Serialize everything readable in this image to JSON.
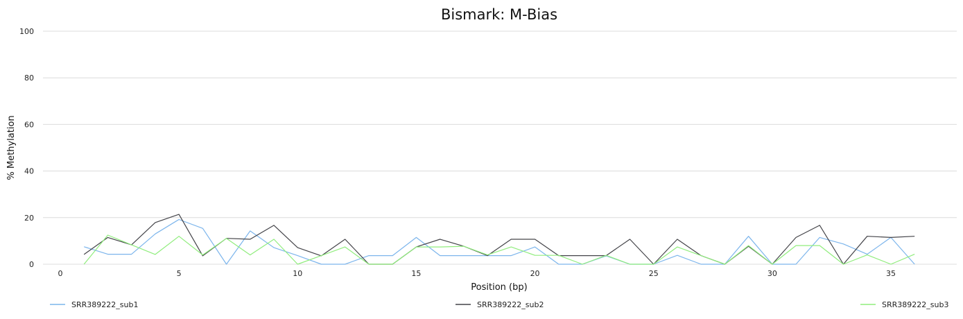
{
  "chart_data": {
    "type": "line",
    "title": "Bismark: M-Bias",
    "xlabel": "Position (bp)",
    "ylabel": "% Methylation",
    "xlim": [
      -1,
      38
    ],
    "ylim": [
      0,
      100
    ],
    "x_ticks": [
      0,
      5,
      10,
      15,
      20,
      25,
      30,
      35
    ],
    "y_ticks": [
      0,
      20,
      40,
      60,
      80,
      100
    ],
    "grid": "horizontal",
    "legend_position": "bottom",
    "x": [
      1,
      2,
      3,
      4,
      5,
      6,
      7,
      8,
      9,
      10,
      11,
      12,
      13,
      14,
      15,
      16,
      17,
      18,
      19,
      20,
      21,
      22,
      23,
      24,
      25,
      26,
      27,
      28,
      29,
      30,
      31,
      32,
      33,
      34,
      35,
      36
    ],
    "series": [
      {
        "name": "SRR389222_sub1",
        "color": "#7cb5ec",
        "values": [
          7.5,
          4.3,
          4.3,
          13.0,
          19.2,
          15.4,
          0,
          14.3,
          7.1,
          3.7,
          0,
          0,
          3.7,
          3.7,
          11.5,
          3.7,
          3.7,
          3.7,
          3.7,
          7.4,
          0,
          0,
          3.6,
          0,
          0,
          3.8,
          0,
          0,
          12.0,
          0,
          0,
          11.5,
          8.7,
          4.3,
          11.5,
          0
        ]
      },
      {
        "name": "SRR389222_sub2",
        "color": "#434348",
        "values": [
          4.2,
          11.5,
          8.3,
          17.9,
          21.4,
          3.6,
          11.1,
          10.7,
          16.7,
          7.1,
          3.6,
          10.7,
          0,
          0,
          7.4,
          10.7,
          7.7,
          3.7,
          10.7,
          10.7,
          3.7,
          3.7,
          3.7,
          10.7,
          0,
          10.7,
          3.7,
          0,
          7.7,
          0,
          11.5,
          16.7,
          0,
          12.0,
          11.5,
          12.0
        ]
      },
      {
        "name": "SRR389222_sub3",
        "color": "#90ed7d",
        "values": [
          0,
          12.5,
          8.3,
          4.2,
          12.0,
          4.0,
          11.1,
          4.0,
          10.7,
          0,
          3.7,
          7.4,
          0,
          0,
          7.4,
          7.4,
          7.7,
          4.0,
          7.4,
          3.8,
          3.8,
          0,
          3.8,
          0,
          0,
          7.4,
          3.7,
          0,
          8.0,
          0,
          8.0,
          8.0,
          0,
          4.0,
          0,
          4.3
        ]
      }
    ]
  }
}
